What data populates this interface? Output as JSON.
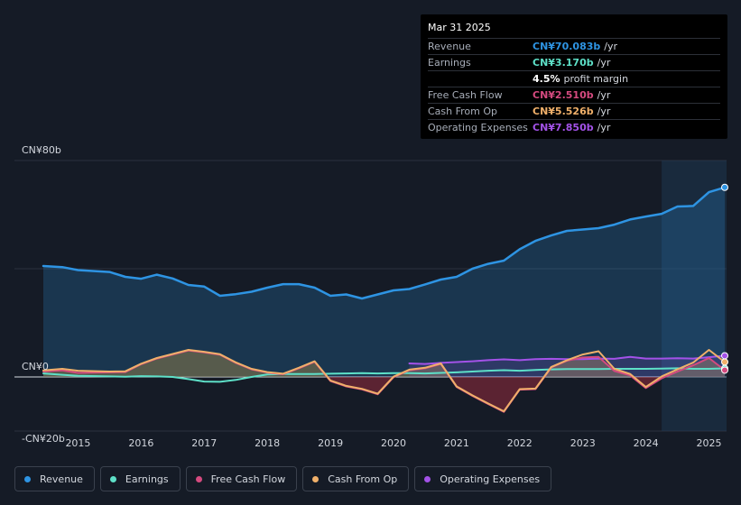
{
  "colors": {
    "revenue": "#2e94e3",
    "earnings": "#5ee0c8",
    "fcf": "#d54a7f",
    "cfo": "#f0b06a",
    "opex": "#a352e8",
    "background": "#151b26",
    "grid": "#2c323d"
  },
  "tooltip": {
    "date": "Mar 31 2025",
    "rows": [
      {
        "label": "Revenue",
        "value": "CN¥70.083b",
        "unit": "/yr",
        "color": "#2e94e3"
      },
      {
        "label": "Earnings",
        "value": "CN¥3.170b",
        "unit": "/yr",
        "color": "#5ee0c8"
      },
      {
        "label": "",
        "value": "4.5%",
        "unit": "profit margin",
        "color": "#ffffff"
      },
      {
        "label": "Free Cash Flow",
        "value": "CN¥2.510b",
        "unit": "/yr",
        "color": "#d54a7f"
      },
      {
        "label": "Cash From Op",
        "value": "CN¥5.526b",
        "unit": "/yr",
        "color": "#f0b06a"
      },
      {
        "label": "Operating Expenses",
        "value": "CN¥7.850b",
        "unit": "/yr",
        "color": "#a352e8"
      }
    ]
  },
  "legend": [
    {
      "label": "Revenue",
      "color": "#2e94e3"
    },
    {
      "label": "Earnings",
      "color": "#5ee0c8"
    },
    {
      "label": "Free Cash Flow",
      "color": "#d54a7f"
    },
    {
      "label": "Cash From Op",
      "color": "#f0b06a"
    },
    {
      "label": "Operating Expenses",
      "color": "#a352e8"
    }
  ],
  "chart_data": {
    "type": "line",
    "title": "",
    "xlabel": "",
    "ylabel": "",
    "ylim": [
      -20,
      80
    ],
    "xlim": [
      2014.45,
      2025.25
    ],
    "highlight_from": 2024.25,
    "y_tick_labels": [
      {
        "value": 80,
        "label": "CN¥80b"
      },
      {
        "value": 0,
        "label": "CN¥0"
      },
      {
        "value": -20,
        "label": "-CN¥20b"
      }
    ],
    "x_ticks": [
      2015,
      2016,
      2017,
      2018,
      2019,
      2020,
      2021,
      2022,
      2023,
      2024,
      2025
    ],
    "x_tick_labels": [
      "2015",
      "2016",
      "2017",
      "2018",
      "2019",
      "2020",
      "2021",
      "2022",
      "2023",
      "2024",
      "2025"
    ],
    "series": [
      {
        "name": "Revenue",
        "key": "revenue",
        "points": [
          [
            2014.45,
            41.0
          ],
          [
            2014.75,
            40.6
          ],
          [
            2015.0,
            39.5
          ],
          [
            2015.5,
            38.8
          ],
          [
            2015.75,
            37.0
          ],
          [
            2016.0,
            36.3
          ],
          [
            2016.25,
            37.8
          ],
          [
            2016.5,
            36.4
          ],
          [
            2016.75,
            34.0
          ],
          [
            2017.0,
            33.4
          ],
          [
            2017.25,
            30.0
          ],
          [
            2017.5,
            30.6
          ],
          [
            2017.75,
            31.5
          ],
          [
            2018.0,
            33.0
          ],
          [
            2018.25,
            34.3
          ],
          [
            2018.5,
            34.3
          ],
          [
            2018.75,
            33.0
          ],
          [
            2019.0,
            30.0
          ],
          [
            2019.25,
            30.5
          ],
          [
            2019.5,
            29.0
          ],
          [
            2019.75,
            30.5
          ],
          [
            2020.0,
            32.0
          ],
          [
            2020.25,
            32.5
          ],
          [
            2020.5,
            34.2
          ],
          [
            2020.75,
            36.0
          ],
          [
            2021.0,
            37.0
          ],
          [
            2021.25,
            40.0
          ],
          [
            2021.5,
            41.8
          ],
          [
            2021.75,
            43.0
          ],
          [
            2022.0,
            47.2
          ],
          [
            2022.25,
            50.3
          ],
          [
            2022.5,
            52.3
          ],
          [
            2022.75,
            54.0
          ],
          [
            2023.0,
            54.5
          ],
          [
            2023.25,
            55.0
          ],
          [
            2023.5,
            56.3
          ],
          [
            2023.75,
            58.2
          ],
          [
            2024.0,
            59.3
          ],
          [
            2024.25,
            60.3
          ],
          [
            2024.5,
            63.0
          ],
          [
            2024.75,
            63.2
          ],
          [
            2025.0,
            68.3
          ],
          [
            2025.25,
            70.08
          ]
        ]
      },
      {
        "name": "Earnings",
        "key": "earnings",
        "points": [
          [
            2014.45,
            1.3
          ],
          [
            2014.75,
            0.8
          ],
          [
            2015.0,
            0.4
          ],
          [
            2015.5,
            0.2
          ],
          [
            2015.75,
            0.1
          ],
          [
            2016.0,
            0.3
          ],
          [
            2016.25,
            0.2
          ],
          [
            2016.5,
            0.0
          ],
          [
            2016.75,
            -0.8
          ],
          [
            2017.0,
            -1.7
          ],
          [
            2017.25,
            -1.8
          ],
          [
            2017.5,
            -1.1
          ],
          [
            2017.75,
            0.0
          ],
          [
            2018.0,
            0.9
          ],
          [
            2018.25,
            1.1
          ],
          [
            2018.5,
            1.1
          ],
          [
            2018.75,
            1.1
          ],
          [
            2019.0,
            1.2
          ],
          [
            2019.25,
            1.3
          ],
          [
            2019.5,
            1.4
          ],
          [
            2019.75,
            1.3
          ],
          [
            2020.0,
            1.4
          ],
          [
            2020.25,
            1.4
          ],
          [
            2020.5,
            1.3
          ],
          [
            2020.75,
            1.5
          ],
          [
            2021.0,
            1.7
          ],
          [
            2021.25,
            2.0
          ],
          [
            2021.5,
            2.3
          ],
          [
            2021.75,
            2.5
          ],
          [
            2022.0,
            2.3
          ],
          [
            2022.25,
            2.6
          ],
          [
            2022.5,
            2.8
          ],
          [
            2022.75,
            2.9
          ],
          [
            2023.0,
            2.9
          ],
          [
            2023.25,
            2.9
          ],
          [
            2023.5,
            3.0
          ],
          [
            2023.75,
            3.0
          ],
          [
            2024.0,
            3.0
          ],
          [
            2024.25,
            3.1
          ],
          [
            2024.5,
            3.2
          ],
          [
            2024.75,
            3.0
          ],
          [
            2025.0,
            3.0
          ],
          [
            2025.25,
            3.17
          ]
        ]
      },
      {
        "name": "Free Cash Flow",
        "key": "fcf",
        "points": [
          [
            2014.45,
            2.0
          ],
          [
            2014.75,
            2.4
          ],
          [
            2015.0,
            1.5
          ],
          [
            2015.5,
            1.7
          ],
          [
            2015.75,
            1.8
          ],
          [
            2016.0,
            4.7
          ],
          [
            2016.25,
            6.8
          ],
          [
            2016.5,
            8.3
          ],
          [
            2016.75,
            9.8
          ],
          [
            2017.0,
            9.1
          ],
          [
            2017.25,
            8.2
          ],
          [
            2017.5,
            5.2
          ],
          [
            2017.75,
            2.8
          ],
          [
            2018.0,
            1.6
          ],
          [
            2018.25,
            1.0
          ],
          [
            2018.5,
            3.2
          ],
          [
            2018.75,
            5.6
          ],
          [
            2019.0,
            -1.5
          ],
          [
            2019.25,
            -3.5
          ],
          [
            2019.5,
            -4.6
          ],
          [
            2019.75,
            -6.4
          ],
          [
            2020.0,
            -0.1
          ],
          [
            2020.25,
            2.5
          ],
          [
            2020.5,
            3.2
          ],
          [
            2020.75,
            4.8
          ],
          [
            2021.0,
            -3.7
          ],
          [
            2021.25,
            -7.0
          ],
          [
            2021.5,
            -10.0
          ],
          [
            2021.75,
            -12.9
          ],
          [
            2022.0,
            -4.7
          ],
          [
            2022.25,
            -4.5
          ],
          [
            2022.5,
            3.5
          ],
          [
            2022.75,
            6.0
          ],
          [
            2023.0,
            7.2
          ],
          [
            2023.25,
            7.4
          ],
          [
            2023.5,
            2.2
          ],
          [
            2023.75,
            0.6
          ],
          [
            2024.0,
            -4.1
          ],
          [
            2024.25,
            -0.5
          ],
          [
            2024.5,
            2.0
          ],
          [
            2024.75,
            4.3
          ],
          [
            2025.0,
            7.0
          ],
          [
            2025.25,
            2.51
          ]
        ]
      },
      {
        "name": "Cash From Op",
        "key": "cfo",
        "points": [
          [
            2014.45,
            2.4
          ],
          [
            2014.75,
            3.0
          ],
          [
            2015.0,
            2.3
          ],
          [
            2015.5,
            2.0
          ],
          [
            2015.75,
            2.1
          ],
          [
            2016.0,
            4.9
          ],
          [
            2016.25,
            7.0
          ],
          [
            2016.5,
            8.5
          ],
          [
            2016.75,
            10.0
          ],
          [
            2017.0,
            9.3
          ],
          [
            2017.25,
            8.4
          ],
          [
            2017.5,
            5.4
          ],
          [
            2017.75,
            3.0
          ],
          [
            2018.0,
            1.8
          ],
          [
            2018.25,
            1.2
          ],
          [
            2018.5,
            3.4
          ],
          [
            2018.75,
            5.8
          ],
          [
            2019.0,
            -1.3
          ],
          [
            2019.25,
            -3.3
          ],
          [
            2019.5,
            -4.4
          ],
          [
            2019.75,
            -6.2
          ],
          [
            2020.0,
            0.1
          ],
          [
            2020.25,
            2.7
          ],
          [
            2020.5,
            3.4
          ],
          [
            2020.75,
            5.0
          ],
          [
            2021.0,
            -3.5
          ],
          [
            2021.25,
            -6.8
          ],
          [
            2021.5,
            -9.8
          ],
          [
            2021.75,
            -12.7
          ],
          [
            2022.0,
            -4.5
          ],
          [
            2022.25,
            -4.3
          ],
          [
            2022.5,
            3.7
          ],
          [
            2022.75,
            6.2
          ],
          [
            2023.0,
            8.3
          ],
          [
            2023.25,
            9.5
          ],
          [
            2023.5,
            3.0
          ],
          [
            2023.75,
            1.1
          ],
          [
            2024.0,
            -3.7
          ],
          [
            2024.25,
            0.2
          ],
          [
            2024.5,
            2.8
          ],
          [
            2024.75,
            5.3
          ],
          [
            2025.0,
            10.0
          ],
          [
            2025.25,
            5.53
          ]
        ]
      },
      {
        "name": "Operating Expenses",
        "key": "opex",
        "points": [
          [
            2020.25,
            5.0
          ],
          [
            2020.5,
            4.8
          ],
          [
            2020.75,
            5.2
          ],
          [
            2021.0,
            5.5
          ],
          [
            2021.25,
            5.8
          ],
          [
            2021.5,
            6.2
          ],
          [
            2021.75,
            6.5
          ],
          [
            2022.0,
            6.2
          ],
          [
            2022.25,
            6.6
          ],
          [
            2022.5,
            6.7
          ],
          [
            2022.75,
            6.6
          ],
          [
            2023.0,
            6.6
          ],
          [
            2023.25,
            6.8
          ],
          [
            2023.5,
            6.7
          ],
          [
            2023.75,
            7.4
          ],
          [
            2024.0,
            6.8
          ],
          [
            2024.25,
            6.8
          ],
          [
            2024.5,
            6.9
          ],
          [
            2024.75,
            6.8
          ],
          [
            2025.0,
            7.3
          ],
          [
            2025.25,
            7.85
          ]
        ]
      }
    ]
  }
}
